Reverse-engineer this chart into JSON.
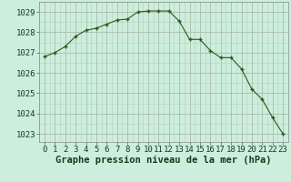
{
  "x": [
    0,
    1,
    2,
    3,
    4,
    5,
    6,
    7,
    8,
    9,
    10,
    11,
    12,
    13,
    14,
    15,
    16,
    17,
    18,
    19,
    20,
    21,
    22,
    23
  ],
  "y": [
    1026.8,
    1027.0,
    1027.3,
    1027.8,
    1028.1,
    1028.2,
    1028.4,
    1028.6,
    1028.65,
    1029.0,
    1029.05,
    1029.05,
    1029.05,
    1028.55,
    1027.65,
    1027.65,
    1027.1,
    1026.75,
    1026.75,
    1026.2,
    1025.2,
    1024.7,
    1023.8,
    1023.0
  ],
  "line_color": "#2d5a1b",
  "marker_color": "#2d5a1b",
  "bg_plot": "#cceedd",
  "bg_fig": "#cceedd",
  "grid_color_major": "#aabbaa",
  "grid_color_minor": "#bbccbb",
  "xlabel": "Graphe pression niveau de la mer (hPa)",
  "ylim": [
    1022.6,
    1029.5
  ],
  "yticks": [
    1023,
    1024,
    1025,
    1026,
    1027,
    1028,
    1029
  ],
  "xticks": [
    0,
    1,
    2,
    3,
    4,
    5,
    6,
    7,
    8,
    9,
    10,
    11,
    12,
    13,
    14,
    15,
    16,
    17,
    18,
    19,
    20,
    21,
    22,
    23
  ],
  "tick_fontsize": 6.5,
  "label_fontsize": 7.5
}
